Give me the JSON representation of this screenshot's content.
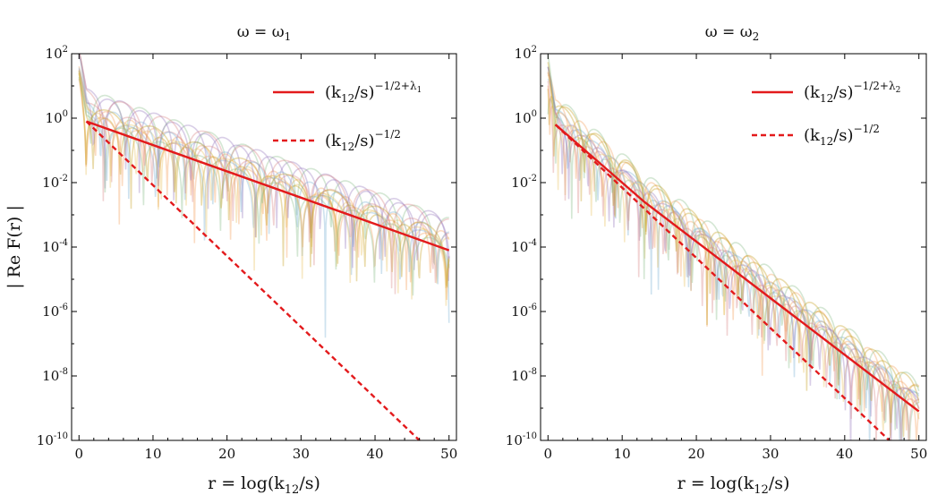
{
  "chart_data": [
    {
      "type": "line",
      "title": "ω = ω₁",
      "title_main": "ω = ω",
      "title_sub": "1",
      "ylabel": "| Re F(r) |",
      "xlabel_main": "r = log(k",
      "xlabel_sub": "12",
      "xlabel_tail": "/s)",
      "xlim": [
        -1,
        51
      ],
      "yscale": "log",
      "ylim_exponent": [
        -10,
        2
      ],
      "x_ticks": [
        "0",
        "10",
        "20",
        "30",
        "40",
        "50"
      ],
      "x_tick_values": [
        0,
        10,
        20,
        30,
        40,
        50
      ],
      "y_ticks": [
        {
          "exp": 2,
          "base": "10",
          "sup": "2"
        },
        {
          "exp": 0,
          "base": "10",
          "sup": "0"
        },
        {
          "exp": -2,
          "base": "10",
          "sup": "-2"
        },
        {
          "exp": -4,
          "base": "10",
          "sup": "-4"
        },
        {
          "exp": -6,
          "base": "10",
          "sup": "-6"
        },
        {
          "exp": -8,
          "base": "10",
          "sup": "-8"
        },
        {
          "exp": -10,
          "base": "10",
          "sup": "-10"
        }
      ],
      "series": [
        {
          "name": "(k₁₂/s)^(-1/2+λ₁)",
          "legend_base": "(k",
          "legend_sub": "12",
          "legend_mid": "/s)",
          "legend_sup": "−1/2+λ",
          "legend_sup_sub": "1",
          "style": "solid",
          "color": "#e31a1c",
          "points": [
            [
              1,
              -0.1
            ],
            [
              50,
              -4.1
            ]
          ]
        },
        {
          "name": "(k₁₂/s)^(-1/2)",
          "legend_base": "(k",
          "legend_sub": "12",
          "legend_mid": "/s)",
          "legend_sup": "−1/2",
          "legend_sup_sub": "",
          "style": "dashed",
          "color": "#e31a1c",
          "points": [
            [
              1,
              -0.1
            ],
            [
              46,
              -10
            ]
          ]
        }
      ]
    },
    {
      "type": "line",
      "title": "ω = ω₂",
      "title_main": "ω = ω",
      "title_sub": "2",
      "ylabel": "",
      "xlabel_main": "r = log(k",
      "xlabel_sub": "12",
      "xlabel_tail": "/s)",
      "xlim": [
        -1,
        51
      ],
      "yscale": "log",
      "ylim_exponent": [
        -10,
        2
      ],
      "x_ticks": [
        "0",
        "10",
        "20",
        "30",
        "40",
        "50"
      ],
      "x_tick_values": [
        0,
        10,
        20,
        30,
        40,
        50
      ],
      "y_ticks": [
        {
          "exp": 2,
          "base": "10",
          "sup": "2"
        },
        {
          "exp": 0,
          "base": "10",
          "sup": "0"
        },
        {
          "exp": -2,
          "base": "10",
          "sup": "-2"
        },
        {
          "exp": -4,
          "base": "10",
          "sup": "-4"
        },
        {
          "exp": -6,
          "base": "10",
          "sup": "-6"
        },
        {
          "exp": -8,
          "base": "10",
          "sup": "-8"
        },
        {
          "exp": -10,
          "base": "10",
          "sup": "-10"
        }
      ],
      "series": [
        {
          "name": "(k₁₂/s)^(-1/2+λ₂)",
          "legend_base": "(k",
          "legend_sub": "12",
          "legend_mid": "/s)",
          "legend_sup": "−1/2+λ",
          "legend_sup_sub": "2",
          "style": "solid",
          "color": "#e31a1c",
          "points": [
            [
              1,
              -0.2
            ],
            [
              13,
              -2.6
            ],
            [
              50,
              -9.1
            ]
          ]
        },
        {
          "name": "(k₁₂/s)^(-1/2)",
          "legend_base": "(k",
          "legend_sub": "12",
          "legend_mid": "/s)",
          "legend_sup": "−1/2",
          "legend_sup_sub": "",
          "style": "dashed",
          "color": "#e31a1c",
          "points": [
            [
              1,
              -0.2
            ],
            [
              46,
              -10
            ]
          ]
        }
      ]
    }
  ],
  "oscillation_colors": [
    "#f4a261",
    "#7fb3d5",
    "#e9c46a",
    "#9b7fc0",
    "#8fbf8f",
    "#d98c8c",
    "#c9a227"
  ]
}
